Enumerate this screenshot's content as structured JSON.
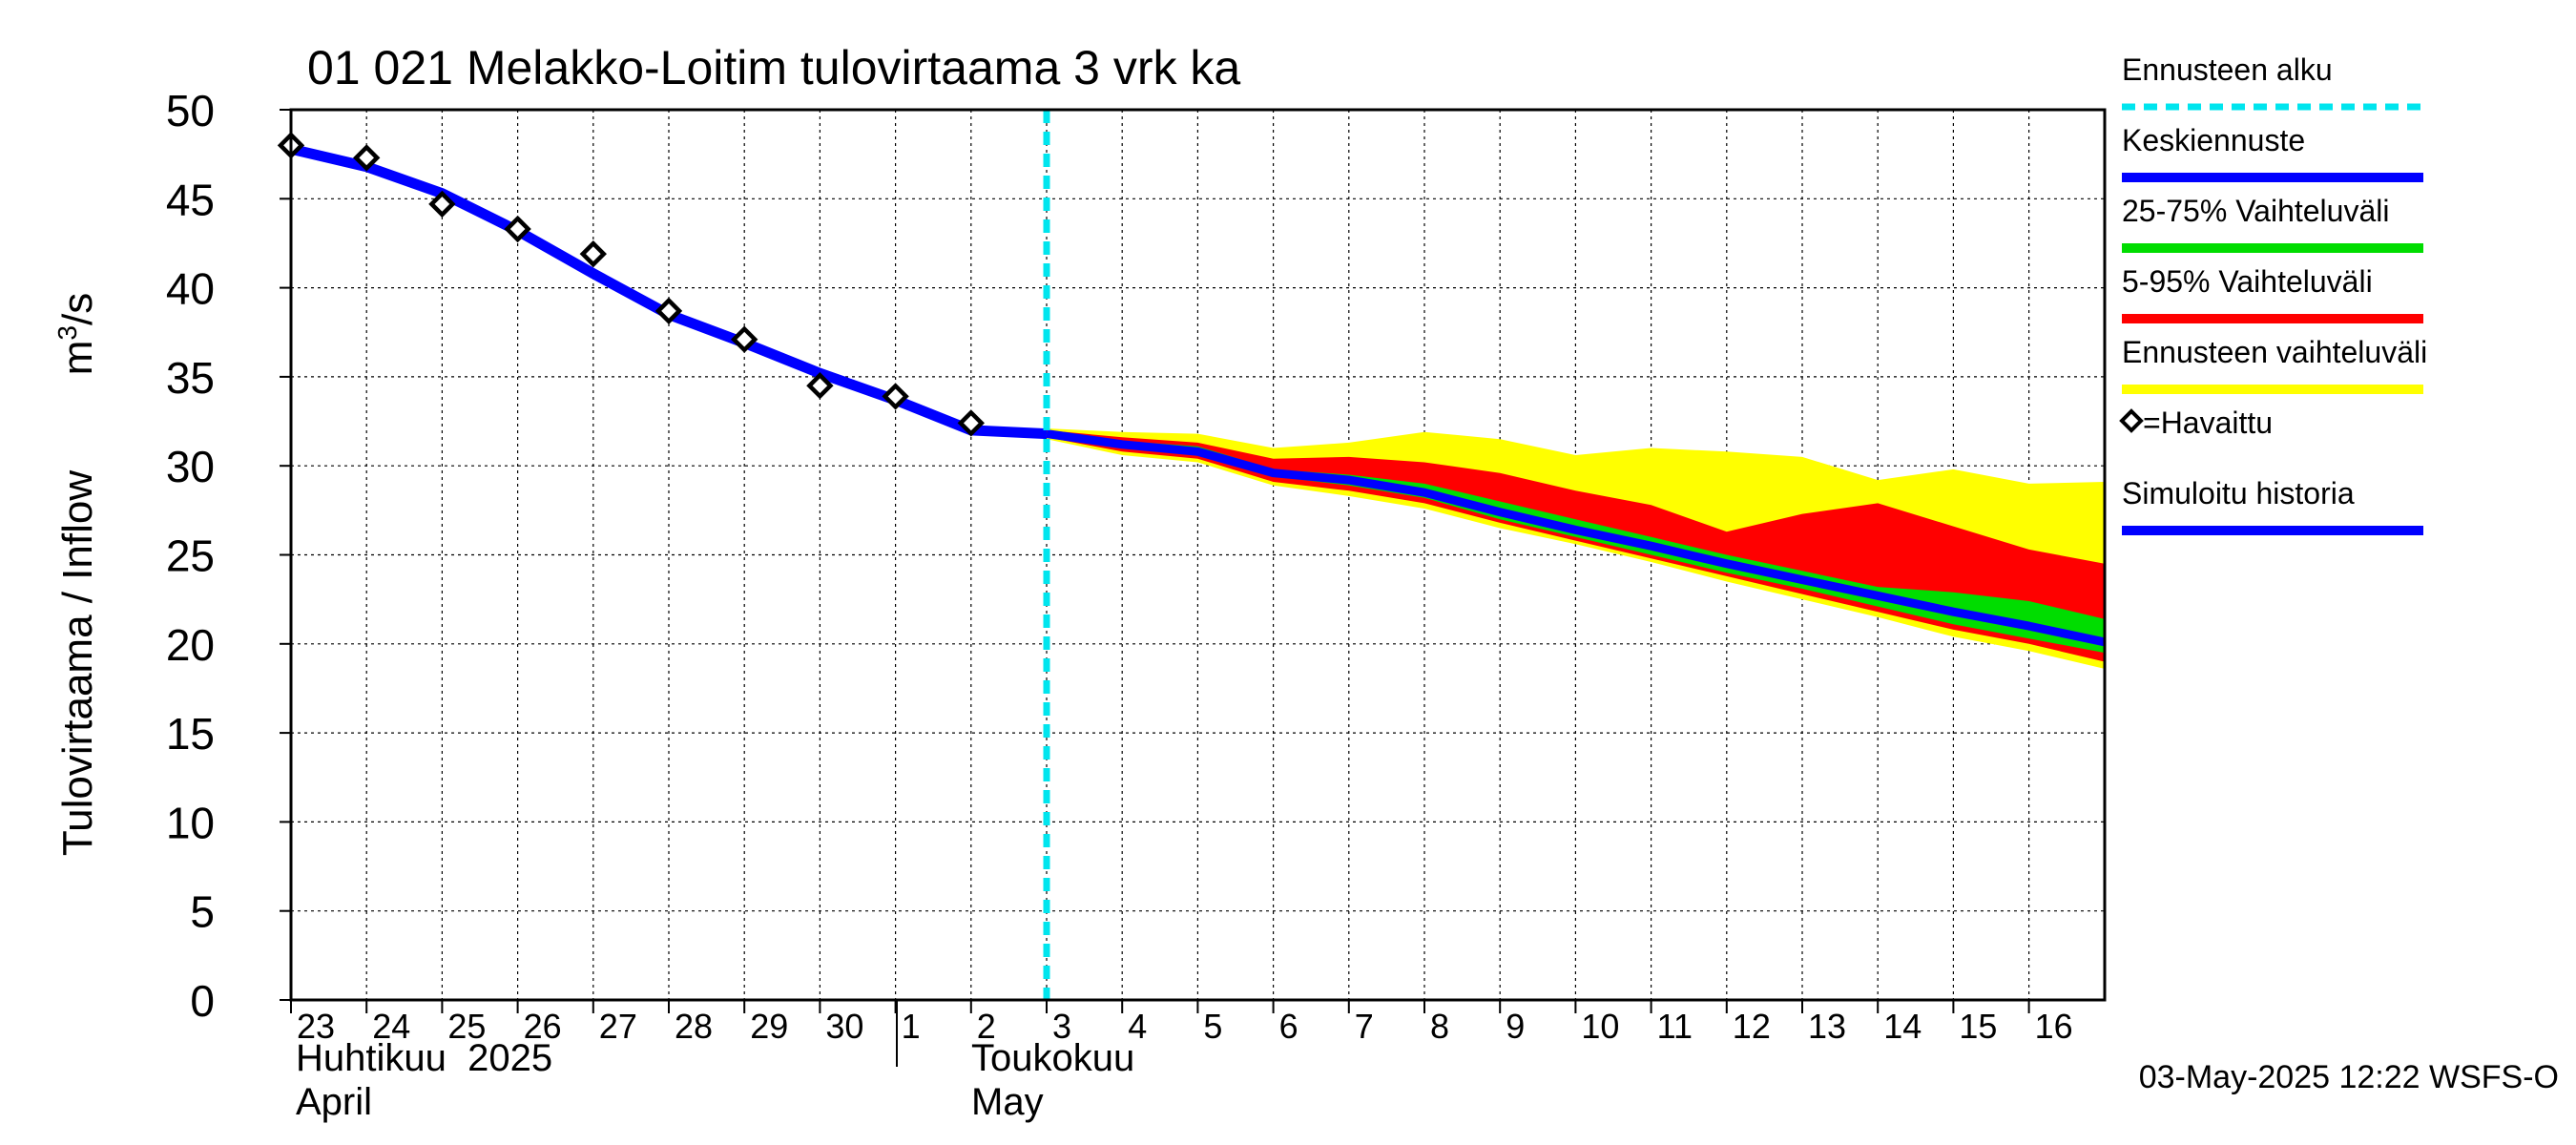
{
  "chart_data": {
    "type": "line",
    "title": "01 021 Melakko-Loitim tulovirtaama 3 vrk ka",
    "ylabel": "Tulovirtaama / Inflow",
    "yunit_base": "m",
    "yunit_sup": "3",
    "yunit_tail": "/s",
    "ylim": [
      0,
      50
    ],
    "yticks": [
      0,
      5,
      10,
      15,
      20,
      25,
      30,
      35,
      40,
      45,
      50
    ],
    "grid": true,
    "day_labels": [
      "23",
      "24",
      "25",
      "26",
      "27",
      "28",
      "29",
      "30",
      "1",
      "2",
      "3",
      "4",
      "5",
      "6",
      "7",
      "8",
      "9",
      "10",
      "11",
      "12",
      "13",
      "14",
      "15",
      "16"
    ],
    "month_labels": [
      {
        "fi": "Huhtikuu  2025",
        "en": "April"
      },
      {
        "fi": "Toukokuu",
        "en": "May"
      }
    ],
    "forecast_start": "2025-05-03",
    "observed": [
      {
        "x": "2025-04-23",
        "y": 48.0
      },
      {
        "x": "2025-04-24",
        "y": 47.3
      },
      {
        "x": "2025-04-25",
        "y": 44.7
      },
      {
        "x": "2025-04-26",
        "y": 43.3
      },
      {
        "x": "2025-04-27",
        "y": 41.9
      },
      {
        "x": "2025-04-28",
        "y": 38.7
      },
      {
        "x": "2025-04-29",
        "y": 37.1
      },
      {
        "x": "2025-04-30",
        "y": 34.5
      },
      {
        "x": "2025-05-01",
        "y": 33.9
      },
      {
        "x": "2025-05-02",
        "y": 32.4
      }
    ],
    "simulated_history": {
      "x": [
        "2025-04-23",
        "2025-04-24",
        "2025-04-25",
        "2025-04-26",
        "2025-04-27",
        "2025-04-28",
        "2025-04-29",
        "2025-04-30",
        "2025-05-01",
        "2025-05-02",
        "2025-05-03"
      ],
      "y": [
        47.8,
        46.8,
        45.3,
        43.2,
        40.8,
        38.5,
        36.9,
        35.2,
        33.7,
        32.0,
        31.8
      ]
    },
    "forecast": {
      "x": [
        "2025-05-03",
        "2025-05-04",
        "2025-05-05",
        "2025-05-06",
        "2025-05-07",
        "2025-05-08",
        "2025-05-09",
        "2025-05-10",
        "2025-05-11",
        "2025-05-12",
        "2025-05-13",
        "2025-05-14",
        "2025-05-15",
        "2025-05-16",
        "2025-05-17"
      ],
      "mean": [
        31.8,
        31.2,
        30.8,
        29.6,
        29.2,
        28.5,
        27.4,
        26.4,
        25.5,
        24.5,
        23.6,
        22.7,
        21.8,
        21.0,
        20.1
      ],
      "p25": [
        31.7,
        31.0,
        30.6,
        29.4,
        28.9,
        28.2,
        27.0,
        26.0,
        25.0,
        24.0,
        23.1,
        22.1,
        21.1,
        20.3,
        19.5
      ],
      "p75": [
        31.9,
        31.4,
        31.1,
        29.8,
        29.5,
        29.0,
        28.0,
        27.0,
        26.0,
        25.0,
        24.1,
        23.2,
        22.9,
        22.4,
        21.4
      ],
      "p5": [
        31.6,
        30.8,
        30.4,
        29.1,
        28.6,
        27.9,
        26.8,
        25.8,
        24.8,
        23.8,
        22.8,
        21.8,
        20.8,
        20.0,
        19.0
      ],
      "p95": [
        32.0,
        31.6,
        31.3,
        30.4,
        30.5,
        30.2,
        29.6,
        28.6,
        27.8,
        26.3,
        27.3,
        27.9,
        26.6,
        25.3,
        24.5
      ],
      "min": [
        31.5,
        30.6,
        30.2,
        28.9,
        28.3,
        27.6,
        26.5,
        25.6,
        24.6,
        23.5,
        22.5,
        21.5,
        20.4,
        19.6,
        18.6
      ],
      "max": [
        32.1,
        31.9,
        31.8,
        31.0,
        31.3,
        31.9,
        31.5,
        30.6,
        31.0,
        30.8,
        30.5,
        29.2,
        29.8,
        29.0,
        29.1
      ]
    },
    "legend": {
      "items": [
        {
          "label": "Ennusteen alku",
          "color": "#00e5ee",
          "style": "dashed"
        },
        {
          "label": "Keskiennuste",
          "color": "#0000ff",
          "style": "line"
        },
        {
          "label": "25-75% Vaihteluväli",
          "color": "#00dd00",
          "style": "line"
        },
        {
          "label": "5-95% Vaihteluväli",
          "color": "#ff0000",
          "style": "line"
        },
        {
          "label": "Ennusteen vaihteluväli",
          "color": "#ffff00",
          "style": "line"
        },
        {
          "label": "=Havaittu",
          "color": "#000000",
          "style": "diamond"
        },
        {
          "label": "Simuloitu historia",
          "color": "#0000ff",
          "style": "line"
        }
      ],
      "placement": "right"
    },
    "timestamp": "03-May-2025 12:22 WSFS-O"
  }
}
